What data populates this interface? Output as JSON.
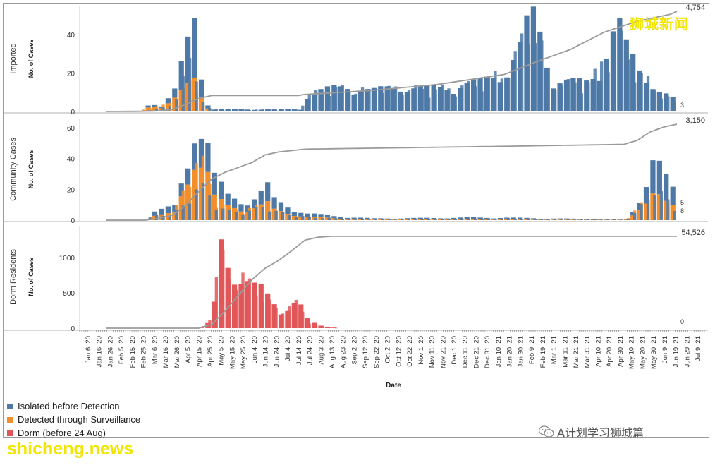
{
  "watermarks": {
    "top": "狮城新闻",
    "bottom": "shicheng.news",
    "wechat_label": "A计划学习狮城篇"
  },
  "legend": [
    {
      "label": "Isolated before Detection",
      "color": "#4e79a7"
    },
    {
      "label": "Detected through Surveillance",
      "color": "#f28e2b"
    },
    {
      "label": "Dorm (before 24 Aug)",
      "color": "#e15759"
    }
  ],
  "chart_data": {
    "type": "bar",
    "xlabel": "Date",
    "x_ticks": [
      "Jan 6, 20",
      "Jan 16, 20",
      "Jan 26, 20",
      "Feb 5, 20",
      "Feb 15, 20",
      "Feb 25, 20",
      "Mar 6, 20",
      "Mar 16, 20",
      "Mar 26, 20",
      "Apr 5, 20",
      "Apr 15, 20",
      "Apr 25, 20",
      "May 5, 20",
      "May 15, 20",
      "May 25, 20",
      "Jun 4, 20",
      "Jun 14, 20",
      "Jun 24, 20",
      "Jul 4, 20",
      "Jul 14, 20",
      "Jul 24, 20",
      "Aug 3, 20",
      "Aug 13, 20",
      "Aug 23, 20",
      "Sep 2, 20",
      "Sep 12, 20",
      "Sep 22, 20",
      "Oct 2, 20",
      "Oct 12, 20",
      "Oct 22, 20",
      "Nov 1, 20",
      "Nov 11, 20",
      "Nov 21, 20",
      "Dec 1, 20",
      "Dec 11, 20",
      "Dec 21, 20",
      "Dec 31, 20",
      "Jan 10, 21",
      "Jan 20, 21",
      "Jan 30, 21",
      "Feb 9, 21",
      "Feb 19, 21",
      "Mar 1, 21",
      "Mar 11, 21",
      "Mar 21, 21",
      "Mar 31, 21",
      "Apr 10, 21",
      "Apr 20, 21",
      "Apr 30, 21",
      "May 10, 21",
      "May 20, 21",
      "May 30, 21",
      "Jun 9, 21",
      "Jun 19, 21",
      "Jun 29, 21",
      "Jul 9, 21"
    ],
    "panels": [
      {
        "name": "Imported",
        "ylabel": "No. of Cases",
        "ylim": [
          0,
          55
        ],
        "y_ticks": [
          0,
          20,
          40
        ],
        "cumulative_total": "4,754",
        "end_labels": [
          "3"
        ],
        "series": [
          {
            "name": "Isolated before Detection",
            "color": "#4e79a7",
            "profile": [
              [
                0,
                0
              ],
              [
                5,
                0
              ],
              [
                6,
                1
              ],
              [
                7,
                1
              ],
              [
                8,
                1
              ],
              [
                10,
                4
              ],
              [
                12,
                20
              ],
              [
                13,
                28
              ],
              [
                14,
                10
              ],
              [
                15,
                2
              ],
              [
                16,
                1
              ],
              [
                20,
                1
              ],
              [
                29,
                1
              ],
              [
                30,
                8
              ],
              [
                32,
                10
              ],
              [
                36,
                12
              ],
              [
                40,
                10
              ],
              [
                44,
                12
              ],
              [
                48,
                11
              ],
              [
                52,
                12
              ],
              [
                56,
                14
              ],
              [
                60,
                20
              ],
              [
                62,
                30
              ],
              [
                63,
                40
              ],
              [
                64,
                45
              ],
              [
                65,
                38
              ],
              [
                66,
                25
              ],
              [
                67,
                15
              ],
              [
                70,
                14
              ],
              [
                72,
                14
              ],
              [
                74,
                20
              ],
              [
                75,
                30
              ],
              [
                76,
                38
              ],
              [
                77,
                40
              ],
              [
                78,
                30
              ],
              [
                80,
                20
              ],
              [
                82,
                14
              ],
              [
                83,
                10
              ],
              [
                84,
                8
              ],
              [
                85,
                6
              ],
              [
                86,
                3
              ]
            ]
          },
          {
            "name": "Detected through Surveillance",
            "color": "#f28e2b",
            "profile": [
              [
                0,
                0
              ],
              [
                5,
                0
              ],
              [
                6,
                2
              ],
              [
                7,
                3
              ],
              [
                8,
                2
              ],
              [
                10,
                6
              ],
              [
                12,
                12
              ],
              [
                13,
                16
              ],
              [
                14,
                8
              ],
              [
                15,
                2
              ],
              [
                16,
                0
              ],
              [
                85,
                0
              ]
            ]
          }
        ],
        "cumulative_profile": [
          [
            0,
            0
          ],
          [
            5,
            0.002
          ],
          [
            8,
            0.006
          ],
          [
            10,
            0.02
          ],
          [
            12,
            0.07
          ],
          [
            14,
            0.13
          ],
          [
            16,
            0.16
          ],
          [
            29,
            0.16
          ],
          [
            30,
            0.17
          ],
          [
            40,
            0.21
          ],
          [
            50,
            0.27
          ],
          [
            60,
            0.37
          ],
          [
            65,
            0.5
          ],
          [
            70,
            0.62
          ],
          [
            75,
            0.79
          ],
          [
            80,
            0.9
          ],
          [
            85,
            0.97
          ],
          [
            86,
            1.0
          ]
        ]
      },
      {
        "name": "Community Cases",
        "ylabel": "No. of Cases",
        "ylim": [
          0,
          66
        ],
        "y_ticks": [
          0,
          20,
          40,
          60
        ],
        "cumulative_total": "3,150",
        "end_labels": [
          "5",
          "8"
        ],
        "series": [
          {
            "name": "Isolated before Detection",
            "color": "#4e79a7",
            "profile": [
              [
                0,
                0
              ],
              [
                6,
                0
              ],
              [
                7,
                3
              ],
              [
                10,
                4
              ],
              [
                12,
                10
              ],
              [
                13,
                20
              ],
              [
                14,
                22
              ],
              [
                15,
                18
              ],
              [
                16,
                12
              ],
              [
                18,
                6
              ],
              [
                20,
                5
              ],
              [
                22,
                6
              ],
              [
                24,
                10
              ],
              [
                25,
                6
              ],
              [
                27,
                4
              ],
              [
                30,
                2
              ],
              [
                35,
                1
              ],
              [
                40,
                0.5
              ],
              [
                55,
                1
              ],
              [
                60,
                1
              ],
              [
                70,
                0.5
              ],
              [
                78,
                0.3
              ],
              [
                79,
                2
              ],
              [
                80,
                6
              ],
              [
                81,
                12
              ],
              [
                82,
                20
              ],
              [
                83,
                18
              ],
              [
                84,
                14
              ],
              [
                85,
                10
              ],
              [
                86,
                6
              ]
            ]
          },
          {
            "name": "Detected through Surveillance",
            "color": "#f28e2b",
            "profile": [
              [
                0,
                0
              ],
              [
                6,
                0
              ],
              [
                7,
                3
              ],
              [
                10,
                4
              ],
              [
                12,
                22
              ],
              [
                13,
                38
              ],
              [
                14,
                40
              ],
              [
                15,
                30
              ],
              [
                16,
                14
              ],
              [
                18,
                8
              ],
              [
                20,
                6
              ],
              [
                22,
                8
              ],
              [
                24,
                10
              ],
              [
                25,
                6
              ],
              [
                27,
                4
              ],
              [
                30,
                2
              ],
              [
                35,
                1
              ],
              [
                40,
                0.5
              ],
              [
                55,
                0.5
              ],
              [
                70,
                0.3
              ],
              [
                78,
                0.3
              ],
              [
                79,
                3
              ],
              [
                80,
                8
              ],
              [
                81,
                12
              ],
              [
                82,
                16
              ],
              [
                83,
                14
              ],
              [
                84,
                10
              ],
              [
                85,
                8
              ],
              [
                86,
                8
              ]
            ]
          }
        ],
        "cumulative_profile": [
          [
            0,
            0
          ],
          [
            6,
            0
          ],
          [
            8,
            0.02
          ],
          [
            10,
            0.05
          ],
          [
            12,
            0.15
          ],
          [
            14,
            0.3
          ],
          [
            16,
            0.43
          ],
          [
            18,
            0.5
          ],
          [
            20,
            0.55
          ],
          [
            22,
            0.6
          ],
          [
            24,
            0.68
          ],
          [
            26,
            0.71
          ],
          [
            30,
            0.74
          ],
          [
            40,
            0.75
          ],
          [
            60,
            0.77
          ],
          [
            78,
            0.79
          ],
          [
            80,
            0.83
          ],
          [
            82,
            0.92
          ],
          [
            84,
            0.97
          ],
          [
            86,
            1.0
          ]
        ]
      },
      {
        "name": "Dorm Residents",
        "ylabel": "No. of Cases",
        "ylim": [
          0,
          1450
        ],
        "y_ticks": [
          0,
          500,
          1000
        ],
        "cumulative_total": "54,526",
        "end_labels": [
          "0"
        ],
        "series": [
          {
            "name": "Dorm (before 24 Aug)",
            "color": "#e15759",
            "profile": [
              [
                0,
                0
              ],
              [
                14,
                0
              ],
              [
                15,
                60
              ],
              [
                16,
                300
              ],
              [
                17,
                1050
              ],
              [
                18,
                800
              ],
              [
                19,
                700
              ],
              [
                20,
                750
              ],
              [
                21,
                650
              ],
              [
                22,
                550
              ],
              [
                23,
                500
              ],
              [
                24,
                400
              ],
              [
                25,
                300
              ],
              [
                26,
                200
              ],
              [
                27,
                320
              ],
              [
                28,
                380
              ],
              [
                29,
                300
              ],
              [
                30,
                120
              ],
              [
                31,
                60
              ],
              [
                32,
                30
              ],
              [
                33,
                20
              ],
              [
                34,
                10
              ],
              [
                35,
                0
              ],
              [
                86,
                0
              ]
            ]
          }
        ],
        "cumulative_profile": [
          [
            0,
            0
          ],
          [
            14,
            0
          ],
          [
            16,
            0.04
          ],
          [
            18,
            0.18
          ],
          [
            20,
            0.34
          ],
          [
            22,
            0.5
          ],
          [
            24,
            0.62
          ],
          [
            26,
            0.7
          ],
          [
            28,
            0.8
          ],
          [
            30,
            0.91
          ],
          [
            32,
            0.94
          ],
          [
            34,
            0.95
          ],
          [
            36,
            0.95
          ],
          [
            86,
            0.95
          ]
        ]
      }
    ]
  }
}
